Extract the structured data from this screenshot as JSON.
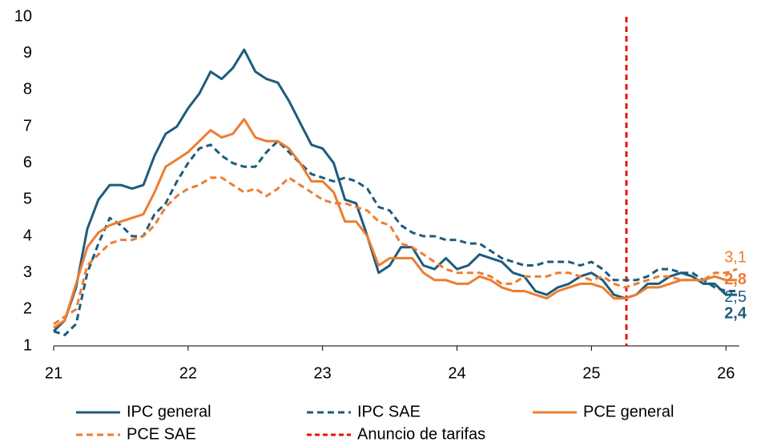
{
  "chart_data": {
    "type": "line",
    "x": [
      21,
      21.083,
      21.167,
      21.25,
      21.333,
      21.417,
      21.5,
      21.583,
      21.667,
      21.75,
      21.833,
      21.917,
      22,
      22.083,
      22.167,
      22.25,
      22.333,
      22.417,
      22.5,
      22.583,
      22.667,
      22.75,
      22.833,
      22.917,
      23,
      23.083,
      23.167,
      23.25,
      23.333,
      23.417,
      23.5,
      23.583,
      23.667,
      23.75,
      23.833,
      23.917,
      24,
      24.083,
      24.167,
      24.25,
      24.333,
      24.417,
      24.5,
      24.583,
      24.667,
      24.75,
      24.833,
      24.917,
      25,
      25.083,
      25.167,
      25.25,
      25.333,
      25.417,
      25.5,
      25.583,
      25.667,
      25.75,
      25.833,
      25.917,
      26,
      26.083
    ],
    "xlim": [
      21,
      26.1
    ],
    "xticks": [
      21,
      22,
      23,
      24,
      25,
      26
    ],
    "ylim": [
      1,
      10
    ],
    "yticks": [
      1,
      2,
      3,
      4,
      5,
      6,
      7,
      8,
      9,
      10
    ],
    "grid": false,
    "series": [
      {
        "name": "IPC general",
        "color": "#1c5c7d",
        "dashed": false,
        "label_bold": true,
        "values": [
          1.4,
          1.7,
          2.6,
          4.2,
          5.0,
          5.4,
          5.4,
          5.3,
          5.4,
          6.2,
          6.8,
          7.0,
          7.5,
          7.9,
          8.5,
          8.3,
          8.6,
          9.1,
          8.5,
          8.3,
          8.2,
          7.7,
          7.1,
          6.5,
          6.4,
          6.0,
          5.0,
          4.9,
          4.0,
          3.0,
          3.2,
          3.7,
          3.7,
          3.2,
          3.1,
          3.4,
          3.1,
          3.2,
          3.5,
          3.4,
          3.3,
          3.0,
          2.9,
          2.5,
          2.4,
          2.6,
          2.7,
          2.9,
          3.0,
          2.8,
          2.4,
          2.3,
          2.4,
          2.7,
          2.7,
          2.9,
          3.0,
          2.9,
          2.7,
          2.7,
          2.4,
          2.4
        ],
        "value_labels": [
          null,
          null,
          null,
          null,
          null,
          null,
          null,
          null,
          null,
          null,
          null,
          null,
          null,
          null,
          null,
          null,
          null,
          null,
          null,
          null,
          null,
          null,
          null,
          null,
          null,
          null,
          null,
          null,
          null,
          null,
          null,
          null,
          null,
          null,
          null,
          null,
          null,
          null,
          null,
          null,
          null,
          null,
          null,
          null,
          null,
          null,
          null,
          null,
          null,
          null,
          null,
          null,
          null,
          null,
          null,
          null,
          null,
          null,
          null,
          null,
          null,
          "2,4"
        ]
      },
      {
        "name": "IPC SAE",
        "color": "#1c5c7d",
        "dashed": true,
        "label_bold": false,
        "values": [
          1.4,
          1.3,
          1.6,
          3.0,
          3.8,
          4.5,
          4.3,
          4.0,
          4.0,
          4.6,
          4.9,
          5.5,
          6.0,
          6.4,
          6.5,
          6.2,
          6.0,
          5.9,
          5.9,
          6.3,
          6.6,
          6.3,
          6.0,
          5.7,
          5.6,
          5.5,
          5.6,
          5.5,
          5.3,
          4.8,
          4.7,
          4.3,
          4.1,
          4.0,
          4.0,
          3.9,
          3.9,
          3.8,
          3.8,
          3.6,
          3.4,
          3.3,
          3.2,
          3.2,
          3.3,
          3.3,
          3.3,
          3.2,
          3.3,
          3.1,
          2.8,
          2.8,
          2.8,
          2.9,
          3.1,
          3.1,
          3.0,
          3.0,
          2.8,
          2.6,
          2.5,
          2.5
        ],
        "value_labels": [
          null,
          null,
          null,
          null,
          null,
          null,
          null,
          null,
          null,
          null,
          null,
          null,
          null,
          null,
          null,
          null,
          null,
          null,
          null,
          null,
          null,
          null,
          null,
          null,
          null,
          null,
          null,
          null,
          null,
          null,
          null,
          null,
          null,
          null,
          null,
          null,
          null,
          null,
          null,
          null,
          null,
          null,
          null,
          null,
          null,
          null,
          null,
          null,
          null,
          null,
          null,
          null,
          null,
          null,
          null,
          null,
          null,
          null,
          null,
          null,
          null,
          "2,5"
        ]
      },
      {
        "name": "PCE general",
        "color": "#ed7d31",
        "dashed": false,
        "label_bold": true,
        "values": [
          1.5,
          1.7,
          2.7,
          3.7,
          4.1,
          4.3,
          4.4,
          4.5,
          4.6,
          5.2,
          5.9,
          6.1,
          6.3,
          6.6,
          6.9,
          6.7,
          6.8,
          7.2,
          6.7,
          6.6,
          6.6,
          6.4,
          6.0,
          5.5,
          5.5,
          5.2,
          4.4,
          4.4,
          4.0,
          3.2,
          3.4,
          3.4,
          3.4,
          3.0,
          2.8,
          2.8,
          2.7,
          2.7,
          2.9,
          2.8,
          2.6,
          2.5,
          2.5,
          2.4,
          2.3,
          2.5,
          2.6,
          2.7,
          2.7,
          2.6,
          2.3,
          2.3,
          2.4,
          2.6,
          2.6,
          2.7,
          2.8,
          2.8,
          2.8,
          2.9,
          2.8,
          2.8
        ],
        "value_labels": [
          null,
          null,
          null,
          null,
          null,
          null,
          null,
          null,
          null,
          null,
          null,
          null,
          null,
          null,
          null,
          null,
          null,
          null,
          null,
          null,
          null,
          null,
          null,
          null,
          null,
          null,
          null,
          null,
          null,
          null,
          null,
          null,
          null,
          null,
          null,
          null,
          null,
          null,
          null,
          null,
          null,
          null,
          null,
          null,
          null,
          null,
          null,
          null,
          null,
          null,
          null,
          null,
          null,
          null,
          null,
          null,
          null,
          null,
          null,
          null,
          null,
          "2,8"
        ]
      },
      {
        "name": "PCE SAE",
        "color": "#ed7d31",
        "dashed": true,
        "label_bold": false,
        "values": [
          1.6,
          1.8,
          2.0,
          3.2,
          3.5,
          3.8,
          3.9,
          3.9,
          4.0,
          4.3,
          4.8,
          5.1,
          5.3,
          5.4,
          5.6,
          5.6,
          5.4,
          5.2,
          5.3,
          5.1,
          5.3,
          5.6,
          5.4,
          5.2,
          5.0,
          4.9,
          4.9,
          4.8,
          4.7,
          4.4,
          4.3,
          3.8,
          3.7,
          3.5,
          3.3,
          3.1,
          3.0,
          3.0,
          3.0,
          2.9,
          2.7,
          2.7,
          2.9,
          2.9,
          2.9,
          3.0,
          3.0,
          2.9,
          2.8,
          2.9,
          2.7,
          2.6,
          2.7,
          2.8,
          2.9,
          2.9,
          2.8,
          2.8,
          2.8,
          3.0,
          3.0,
          3.1
        ],
        "value_labels": [
          null,
          null,
          null,
          null,
          null,
          null,
          null,
          null,
          null,
          null,
          null,
          null,
          null,
          null,
          null,
          null,
          null,
          null,
          null,
          null,
          null,
          null,
          null,
          null,
          null,
          null,
          null,
          null,
          null,
          null,
          null,
          null,
          null,
          null,
          null,
          null,
          null,
          null,
          null,
          null,
          null,
          null,
          null,
          null,
          null,
          null,
          null,
          null,
          null,
          null,
          null,
          null,
          null,
          null,
          null,
          null,
          null,
          null,
          null,
          null,
          null,
          "3,1"
        ]
      }
    ],
    "vlines": [
      {
        "name": "Anuncio de tarifas",
        "color": "#e8120c",
        "x": 25.26
      }
    ]
  }
}
